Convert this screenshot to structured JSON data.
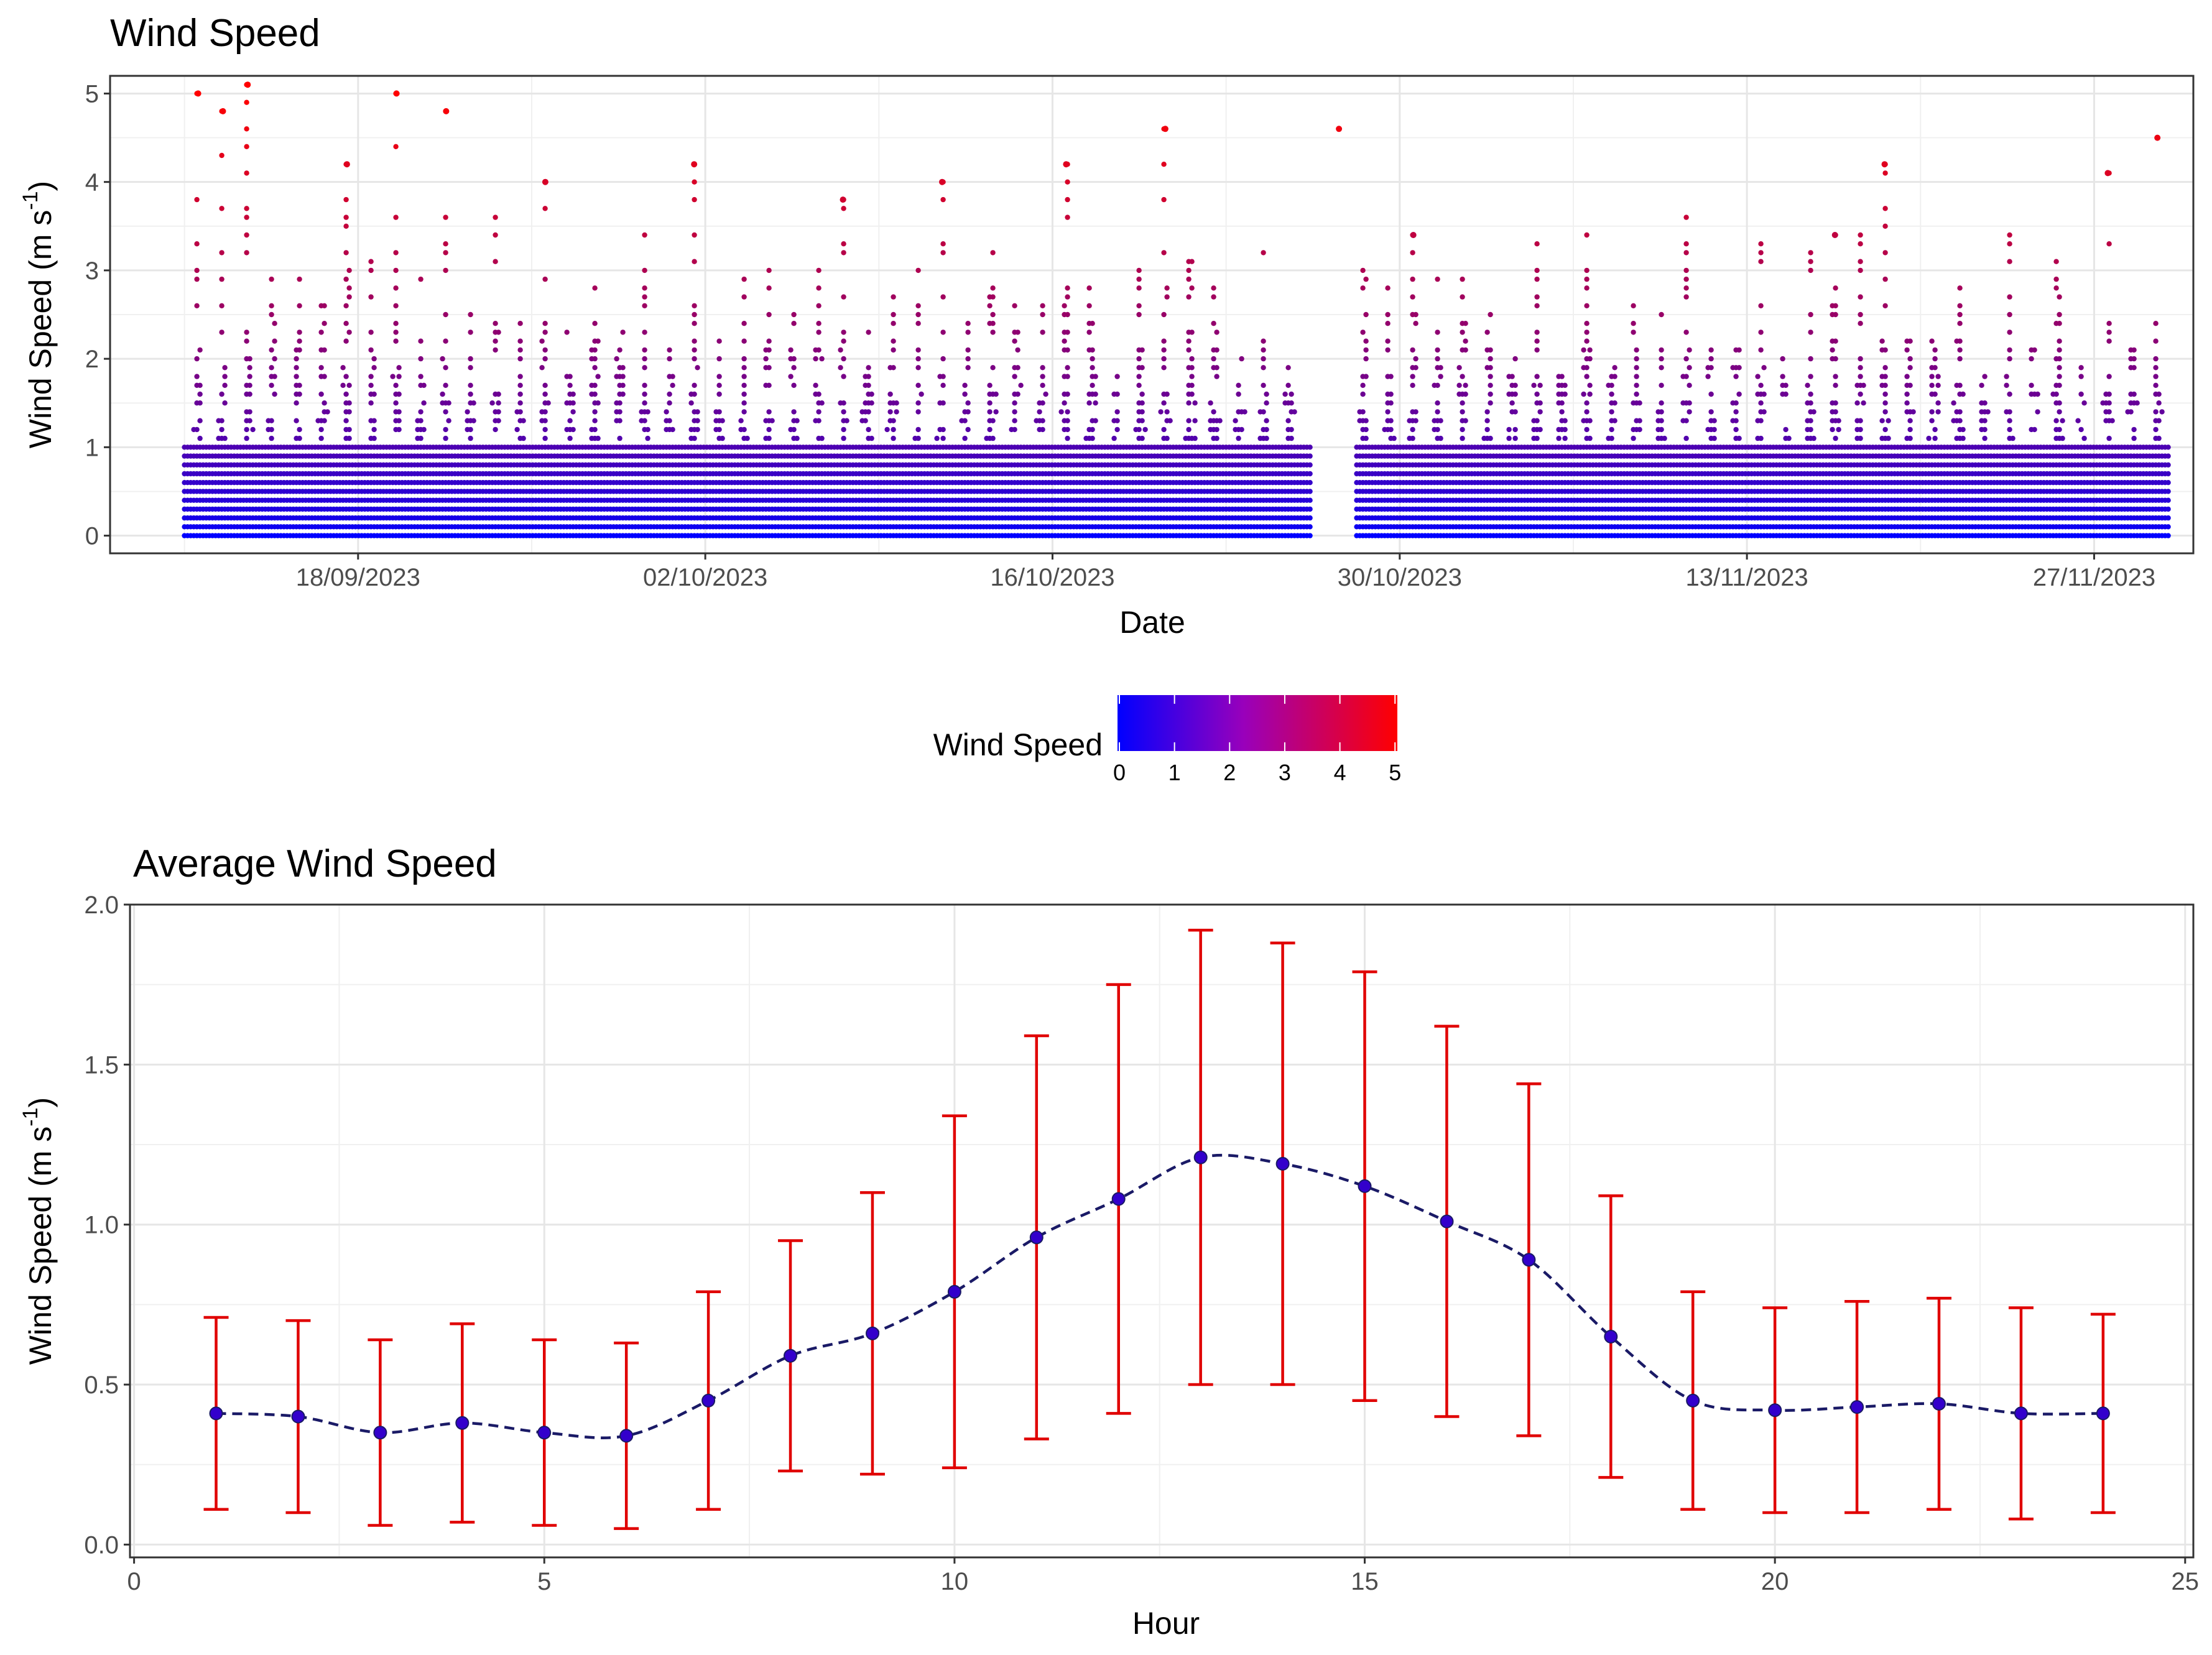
{
  "chart_data": [
    {
      "type": "scatter",
      "title": "Wind Speed",
      "xlabel": "Date",
      "ylabel_main": "Wind Speed (m s",
      "ylabel_sup": "-1",
      "ylabel_close": ")",
      "x_range": [
        "2023-09-08",
        "2023-12-01"
      ],
      "ylim": [
        -0.2,
        5.2
      ],
      "yticks": [
        "0",
        "1",
        "2",
        "3",
        "4",
        "5"
      ],
      "xticks": [
        "18/09/2023",
        "02/10/2023",
        "16/10/2023",
        "30/10/2023",
        "13/11/2023",
        "27/11/2023"
      ],
      "data_start": "2023-09-11",
      "gap": [
        "2023-10-26",
        "2023-10-28"
      ],
      "data_end": "2023-11-29",
      "measurement_resolution": 0.1,
      "color_scale": {
        "low": "#0000ff",
        "high": "#ff0000",
        "min": 0,
        "max": 5
      },
      "peaks": [
        {
          "date": "2023-09-11",
          "value": 5.0
        },
        {
          "date": "2023-09-12",
          "value": 4.8
        },
        {
          "date": "2023-09-13",
          "value": 5.1
        },
        {
          "date": "2023-09-17",
          "value": 4.2
        },
        {
          "date": "2023-09-19",
          "value": 5.0
        },
        {
          "date": "2023-09-21",
          "value": 4.8
        },
        {
          "date": "2023-09-25",
          "value": 4.0
        },
        {
          "date": "2023-10-01",
          "value": 4.2
        },
        {
          "date": "2023-10-07",
          "value": 3.8
        },
        {
          "date": "2023-10-11",
          "value": 4.0
        },
        {
          "date": "2023-10-16",
          "value": 4.2
        },
        {
          "date": "2023-10-20",
          "value": 4.6
        },
        {
          "date": "2023-10-27",
          "value": 4.6
        },
        {
          "date": "2023-10-30",
          "value": 3.4
        },
        {
          "date": "2023-11-16",
          "value": 3.4
        },
        {
          "date": "2023-11-18",
          "value": 4.2
        },
        {
          "date": "2023-11-27",
          "value": 4.1
        },
        {
          "date": "2023-11-29",
          "value": 4.5
        }
      ]
    },
    {
      "type": "line",
      "title": "Average Wind Speed",
      "xlabel": "Hour",
      "ylabel_main": "Wind Speed (m s",
      "ylabel_sup": "-1",
      "ylabel_close": ")",
      "xlim": [
        -0.05,
        25.1
      ],
      "ylim": [
        -0.04,
        2.0
      ],
      "xticks": [
        "0",
        "5",
        "10",
        "15",
        "20",
        "25"
      ],
      "yticks": [
        "0.0",
        "0.5",
        "1.0",
        "1.5",
        "2.0"
      ],
      "line_color": "#1a1a66",
      "point_color": "#3300cc",
      "errorbar_color": "#e00000",
      "x": [
        1,
        2,
        3,
        4,
        5,
        6,
        7,
        8,
        9,
        10,
        11,
        12,
        13,
        14,
        15,
        16,
        17,
        18,
        19,
        20,
        21,
        22,
        23,
        24
      ],
      "mean": [
        0.41,
        0.4,
        0.35,
        0.38,
        0.35,
        0.34,
        0.45,
        0.59,
        0.66,
        0.79,
        0.96,
        1.08,
        1.21,
        1.19,
        1.12,
        1.01,
        0.89,
        0.65,
        0.45,
        0.42,
        0.43,
        0.44,
        0.41,
        0.41
      ],
      "lower": [
        0.11,
        0.1,
        0.06,
        0.07,
        0.06,
        0.05,
        0.11,
        0.23,
        0.22,
        0.24,
        0.33,
        0.41,
        0.5,
        0.5,
        0.45,
        0.4,
        0.34,
        0.21,
        0.11,
        0.1,
        0.1,
        0.11,
        0.08,
        0.1
      ],
      "upper": [
        0.71,
        0.7,
        0.64,
        0.69,
        0.64,
        0.63,
        0.79,
        0.95,
        1.1,
        1.34,
        1.59,
        1.75,
        1.92,
        1.88,
        1.79,
        1.62,
        1.44,
        1.09,
        0.79,
        0.74,
        0.76,
        0.77,
        0.74,
        0.72
      ]
    }
  ],
  "legend": {
    "title": "Wind Speed",
    "ticks": [
      "0",
      "1",
      "2",
      "3",
      "4",
      "5"
    ],
    "low_color": "#0000ff",
    "mid_color": "#9900bb",
    "high_color": "#ff0000"
  }
}
